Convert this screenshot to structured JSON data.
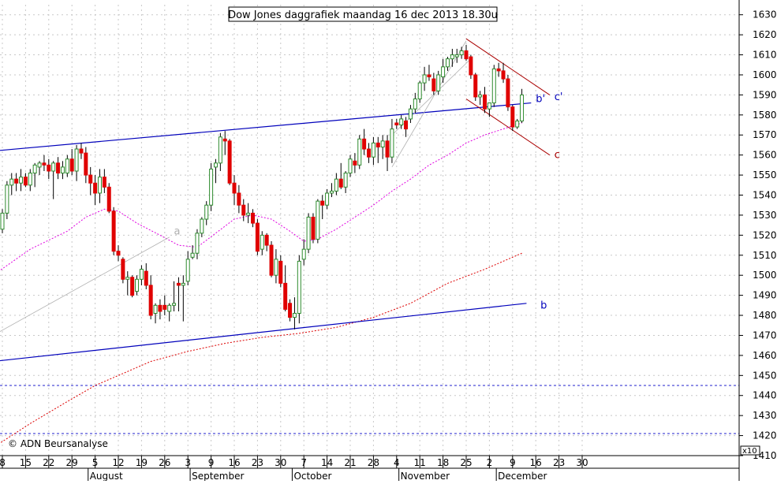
{
  "chart_data": {
    "type": "candlestick",
    "title": "Dow Jones daggrafiek maandag 16 dec 2013 18.30u",
    "copyright": "© ADN Beursanalyse",
    "y_axis": {
      "min": 1410,
      "max": 1635,
      "scale_note": "x10",
      "ticks": [
        1410,
        1420,
        1430,
        1440,
        1450,
        1460,
        1470,
        1480,
        1490,
        1500,
        1510,
        1520,
        1530,
        1540,
        1550,
        1560,
        1570,
        1580,
        1590,
        1600,
        1610,
        1620,
        1630
      ],
      "dashed_lines": [
        1445,
        1421
      ]
    },
    "x_axis": {
      "day_ticks": [
        "8",
        "15",
        "22",
        "29",
        "5",
        "12",
        "19",
        "26",
        "3",
        "9",
        "16",
        "23",
        "30",
        "7",
        "14",
        "21",
        "28",
        "4",
        "11",
        "18",
        "25",
        "2",
        "9",
        "16",
        "23",
        "30"
      ],
      "months": [
        "August",
        "September",
        "October",
        "November",
        "December"
      ],
      "first_label_day": 0,
      "day_step": 5
    },
    "colors": {
      "up": "#2e8b2e",
      "down": "#e00000",
      "ma_short": "#e000e0",
      "ma_long": "#dd0000",
      "trend_blue": "#0000bb",
      "channel": "#aa0000",
      "grey": "#b0b0b0",
      "dashed": "#2222cc"
    },
    "candles": [
      {
        "o": 1523,
        "h": 1533,
        "l": 1521,
        "c": 1531
      },
      {
        "o": 1531,
        "h": 1547,
        "l": 1528,
        "c": 1545
      },
      {
        "o": 1545,
        "h": 1551,
        "l": 1540,
        "c": 1548
      },
      {
        "o": 1548,
        "h": 1551,
        "l": 1542,
        "c": 1546
      },
      {
        "o": 1546,
        "h": 1553,
        "l": 1542,
        "c": 1549
      },
      {
        "o": 1549,
        "h": 1551,
        "l": 1544,
        "c": 1545
      },
      {
        "o": 1545,
        "h": 1553,
        "l": 1542,
        "c": 1551
      },
      {
        "o": 1551,
        "h": 1556,
        "l": 1544,
        "c": 1555
      },
      {
        "o": 1554,
        "h": 1557,
        "l": 1550,
        "c": 1556
      },
      {
        "o": 1556,
        "h": 1560,
        "l": 1552,
        "c": 1555
      },
      {
        "o": 1555,
        "h": 1558,
        "l": 1548,
        "c": 1552
      },
      {
        "o": 1552,
        "h": 1557,
        "l": 1538,
        "c": 1556
      },
      {
        "o": 1556,
        "h": 1559,
        "l": 1548,
        "c": 1551
      },
      {
        "o": 1551,
        "h": 1557,
        "l": 1548,
        "c": 1554
      },
      {
        "o": 1551,
        "h": 1560,
        "l": 1549,
        "c": 1558
      },
      {
        "o": 1558,
        "h": 1563,
        "l": 1550,
        "c": 1552
      },
      {
        "o": 1552,
        "h": 1565,
        "l": 1547,
        "c": 1563
      },
      {
        "o": 1563,
        "h": 1566,
        "l": 1558,
        "c": 1561
      },
      {
        "o": 1561,
        "h": 1564,
        "l": 1546,
        "c": 1550
      },
      {
        "o": 1550,
        "h": 1554,
        "l": 1540,
        "c": 1546
      },
      {
        "o": 1546,
        "h": 1550,
        "l": 1535,
        "c": 1541
      },
      {
        "o": 1541,
        "h": 1553,
        "l": 1536,
        "c": 1549
      },
      {
        "o": 1549,
        "h": 1553,
        "l": 1541,
        "c": 1544
      },
      {
        "o": 1544,
        "h": 1546,
        "l": 1531,
        "c": 1532
      },
      {
        "o": 1532,
        "h": 1534,
        "l": 1510,
        "c": 1512
      },
      {
        "o": 1512,
        "h": 1515,
        "l": 1507,
        "c": 1510
      },
      {
        "o": 1508,
        "h": 1509,
        "l": 1496,
        "c": 1498
      },
      {
        "o": 1498,
        "h": 1502,
        "l": 1490,
        "c": 1499
      },
      {
        "o": 1499,
        "h": 1500,
        "l": 1489,
        "c": 1490
      },
      {
        "o": 1492,
        "h": 1500,
        "l": 1490,
        "c": 1498
      },
      {
        "o": 1498,
        "h": 1505,
        "l": 1495,
        "c": 1503
      },
      {
        "o": 1502,
        "h": 1506,
        "l": 1493,
        "c": 1495
      },
      {
        "o": 1495,
        "h": 1500,
        "l": 1478,
        "c": 1480
      },
      {
        "o": 1481,
        "h": 1486,
        "l": 1476,
        "c": 1485
      },
      {
        "o": 1485,
        "h": 1488,
        "l": 1478,
        "c": 1482
      },
      {
        "o": 1485,
        "h": 1490,
        "l": 1480,
        "c": 1483
      },
      {
        "o": 1482,
        "h": 1486,
        "l": 1477,
        "c": 1485
      },
      {
        "o": 1485,
        "h": 1497,
        "l": 1482,
        "c": 1486
      },
      {
        "o": 1496,
        "h": 1499,
        "l": 1482,
        "c": 1495
      },
      {
        "o": 1495,
        "h": 1500,
        "l": 1477,
        "c": 1496
      },
      {
        "o": 1497,
        "h": 1512,
        "l": 1495,
        "c": 1508
      },
      {
        "o": 1509,
        "h": 1515,
        "l": 1508,
        "c": 1511
      },
      {
        "o": 1511,
        "h": 1523,
        "l": 1508,
        "c": 1521
      },
      {
        "o": 1521,
        "h": 1529,
        "l": 1519,
        "c": 1528
      },
      {
        "o": 1528,
        "h": 1537,
        "l": 1525,
        "c": 1535
      },
      {
        "o": 1535,
        "h": 1556,
        "l": 1532,
        "c": 1553
      },
      {
        "o": 1554,
        "h": 1558,
        "l": 1546,
        "c": 1556
      },
      {
        "o": 1556,
        "h": 1571,
        "l": 1552,
        "c": 1569
      },
      {
        "o": 1568,
        "h": 1572,
        "l": 1560,
        "c": 1567
      },
      {
        "o": 1567,
        "h": 1568,
        "l": 1545,
        "c": 1546
      },
      {
        "o": 1546,
        "h": 1550,
        "l": 1535,
        "c": 1541
      },
      {
        "o": 1541,
        "h": 1545,
        "l": 1531,
        "c": 1535
      },
      {
        "o": 1535,
        "h": 1538,
        "l": 1527,
        "c": 1530
      },
      {
        "o": 1530,
        "h": 1536,
        "l": 1526,
        "c": 1531
      },
      {
        "o": 1531,
        "h": 1533,
        "l": 1524,
        "c": 1526
      },
      {
        "o": 1526,
        "h": 1528,
        "l": 1510,
        "c": 1512
      },
      {
        "o": 1513,
        "h": 1522,
        "l": 1510,
        "c": 1520
      },
      {
        "o": 1520,
        "h": 1521,
        "l": 1512,
        "c": 1515
      },
      {
        "o": 1515,
        "h": 1517,
        "l": 1499,
        "c": 1500
      },
      {
        "o": 1500,
        "h": 1513,
        "l": 1496,
        "c": 1508
      },
      {
        "o": 1507,
        "h": 1510,
        "l": 1494,
        "c": 1496
      },
      {
        "o": 1496,
        "h": 1505,
        "l": 1482,
        "c": 1483
      },
      {
        "o": 1486,
        "h": 1488,
        "l": 1477,
        "c": 1479
      },
      {
        "o": 1479,
        "h": 1489,
        "l": 1473,
        "c": 1481
      },
      {
        "o": 1481,
        "h": 1510,
        "l": 1476,
        "c": 1507
      },
      {
        "o": 1508,
        "h": 1518,
        "l": 1505,
        "c": 1513
      },
      {
        "o": 1513,
        "h": 1531,
        "l": 1511,
        "c": 1529
      },
      {
        "o": 1529,
        "h": 1531,
        "l": 1516,
        "c": 1518
      },
      {
        "o": 1518,
        "h": 1538,
        "l": 1516,
        "c": 1537
      },
      {
        "o": 1537,
        "h": 1540,
        "l": 1528,
        "c": 1535
      },
      {
        "o": 1535,
        "h": 1543,
        "l": 1533,
        "c": 1541
      },
      {
        "o": 1541,
        "h": 1546,
        "l": 1539,
        "c": 1542
      },
      {
        "o": 1542,
        "h": 1551,
        "l": 1540,
        "c": 1548
      },
      {
        "o": 1548,
        "h": 1556,
        "l": 1543,
        "c": 1544
      },
      {
        "o": 1544,
        "h": 1552,
        "l": 1541,
        "c": 1551
      },
      {
        "o": 1551,
        "h": 1560,
        "l": 1549,
        "c": 1558
      },
      {
        "o": 1557,
        "h": 1561,
        "l": 1551,
        "c": 1555
      },
      {
        "o": 1555,
        "h": 1570,
        "l": 1553,
        "c": 1568
      },
      {
        "o": 1568,
        "h": 1573,
        "l": 1560,
        "c": 1563
      },
      {
        "o": 1563,
        "h": 1566,
        "l": 1556,
        "c": 1559
      },
      {
        "o": 1559,
        "h": 1569,
        "l": 1555,
        "c": 1566
      },
      {
        "o": 1566,
        "h": 1569,
        "l": 1556,
        "c": 1564
      },
      {
        "o": 1564,
        "h": 1570,
        "l": 1558,
        "c": 1567
      },
      {
        "o": 1567,
        "h": 1570,
        "l": 1552,
        "c": 1559
      },
      {
        "o": 1559,
        "h": 1578,
        "l": 1556,
        "c": 1573
      },
      {
        "o": 1576,
        "h": 1578,
        "l": 1573,
        "c": 1575
      },
      {
        "o": 1575,
        "h": 1580,
        "l": 1573,
        "c": 1578
      },
      {
        "o": 1577,
        "h": 1579,
        "l": 1569,
        "c": 1573
      },
      {
        "o": 1578,
        "h": 1585,
        "l": 1576,
        "c": 1583
      },
      {
        "o": 1583,
        "h": 1591,
        "l": 1581,
        "c": 1588
      },
      {
        "o": 1588,
        "h": 1597,
        "l": 1586,
        "c": 1596
      },
      {
        "o": 1596,
        "h": 1604,
        "l": 1592,
        "c": 1600
      },
      {
        "o": 1600,
        "h": 1605,
        "l": 1597,
        "c": 1599
      },
      {
        "o": 1598,
        "h": 1601,
        "l": 1590,
        "c": 1592
      },
      {
        "o": 1592,
        "h": 1602,
        "l": 1590,
        "c": 1600
      },
      {
        "o": 1599,
        "h": 1608,
        "l": 1596,
        "c": 1604
      },
      {
        "o": 1604,
        "h": 1609,
        "l": 1602,
        "c": 1608
      },
      {
        "o": 1608,
        "h": 1613,
        "l": 1604,
        "c": 1610
      },
      {
        "o": 1609,
        "h": 1613,
        "l": 1606,
        "c": 1610
      },
      {
        "o": 1610,
        "h": 1614,
        "l": 1608,
        "c": 1612
      },
      {
        "o": 1612,
        "h": 1615,
        "l": 1607,
        "c": 1608
      },
      {
        "o": 1609,
        "h": 1610,
        "l": 1598,
        "c": 1600
      },
      {
        "o": 1600,
        "h": 1601,
        "l": 1587,
        "c": 1589
      },
      {
        "o": 1589,
        "h": 1592,
        "l": 1585,
        "c": 1590
      },
      {
        "o": 1590,
        "h": 1594,
        "l": 1581,
        "c": 1583
      },
      {
        "o": 1583,
        "h": 1586,
        "l": 1579,
        "c": 1586
      },
      {
        "o": 1586,
        "h": 1605,
        "l": 1584,
        "c": 1603
      },
      {
        "o": 1603,
        "h": 1606,
        "l": 1599,
        "c": 1602
      },
      {
        "o": 1602,
        "h": 1606,
        "l": 1596,
        "c": 1598
      },
      {
        "o": 1598,
        "h": 1600,
        "l": 1582,
        "c": 1584
      },
      {
        "o": 1584,
        "h": 1585,
        "l": 1572,
        "c": 1574
      },
      {
        "o": 1574,
        "h": 1578,
        "l": 1573,
        "c": 1577
      },
      {
        "o": 1577,
        "h": 1593,
        "l": 1576,
        "c": 1590
      }
    ],
    "lines": [
      {
        "name": "blue-trend-upper",
        "color": "trend_blue",
        "width": 1.2,
        "dash": "",
        "p1": [
          -2,
          1562
        ],
        "p2": [
          114,
          1586
        ]
      },
      {
        "name": "blue-trend-lower",
        "color": "trend_blue",
        "width": 1.2,
        "dash": "",
        "p1": [
          -2,
          1457
        ],
        "p2": [
          113,
          1486
        ]
      },
      {
        "name": "grey-line-a",
        "color": "grey",
        "width": 0.8,
        "dash": "",
        "p1": [
          -2,
          1470
        ],
        "p2": [
          36,
          1519
        ]
      },
      {
        "name": "grey-line-upper",
        "color": "grey",
        "width": 0.8,
        "dash": "",
        "p1": [
          84,
          1554
        ],
        "p2": [
          100,
          1617
        ]
      },
      {
        "name": "grey-line-lower",
        "color": "grey",
        "width": 0.8,
        "dash": "",
        "p1": [
          84,
          1570
        ],
        "p2": [
          101,
          1608
        ]
      },
      {
        "name": "channel-upper",
        "color": "channel",
        "width": 1,
        "dash": "",
        "p1": [
          100,
          1618
        ],
        "p2": [
          118,
          1590
        ]
      },
      {
        "name": "channel-lower",
        "color": "channel",
        "width": 1,
        "dash": "",
        "p1": [
          100,
          1588
        ],
        "p2": [
          118,
          1560
        ]
      }
    ],
    "moving_averages": [
      {
        "name": "ma-short",
        "color": "ma_short",
        "points": [
          [
            -2,
            1500
          ],
          [
            6,
            1513
          ],
          [
            14,
            1522
          ],
          [
            18,
            1529
          ],
          [
            22,
            1533
          ],
          [
            25,
            1532
          ],
          [
            29,
            1526
          ],
          [
            34,
            1520
          ],
          [
            38,
            1515
          ],
          [
            42,
            1514
          ],
          [
            46,
            1521
          ],
          [
            50,
            1528
          ],
          [
            54,
            1530
          ],
          [
            58,
            1528
          ],
          [
            62,
            1522
          ],
          [
            65,
            1517
          ],
          [
            68,
            1518
          ],
          [
            72,
            1523
          ],
          [
            76,
            1529
          ],
          [
            80,
            1535
          ],
          [
            84,
            1542
          ],
          [
            88,
            1548
          ],
          [
            92,
            1555
          ],
          [
            96,
            1560
          ],
          [
            100,
            1566
          ],
          [
            104,
            1570
          ],
          [
            108,
            1573
          ],
          [
            112,
            1576
          ]
        ]
      },
      {
        "name": "ma-long",
        "color": "ma_long",
        "points": [
          [
            -2,
            1414
          ],
          [
            6,
            1426
          ],
          [
            14,
            1437
          ],
          [
            20,
            1445
          ],
          [
            26,
            1451
          ],
          [
            32,
            1457
          ],
          [
            40,
            1462
          ],
          [
            48,
            1466
          ],
          [
            56,
            1469
          ],
          [
            64,
            1471
          ],
          [
            72,
            1474
          ],
          [
            80,
            1479
          ],
          [
            88,
            1486
          ],
          [
            96,
            1496
          ],
          [
            104,
            1503
          ],
          [
            112,
            1511
          ]
        ]
      }
    ],
    "annotations": [
      {
        "name": "label-a",
        "text": "a",
        "color": "grey",
        "at": [
          37,
          1522
        ]
      },
      {
        "name": "label-b",
        "text": "b",
        "color": "trend_blue",
        "at": [
          116,
          1485
        ]
      },
      {
        "name": "label-b-prime",
        "text": "b'",
        "color": "trend_blue",
        "at": [
          115,
          1588
        ]
      },
      {
        "name": "label-c-prime",
        "text": "c'",
        "color": "trend_blue",
        "at": [
          119,
          1589
        ]
      },
      {
        "name": "label-c",
        "text": "c",
        "color": "channel",
        "at": [
          119,
          1560
        ]
      }
    ]
  }
}
